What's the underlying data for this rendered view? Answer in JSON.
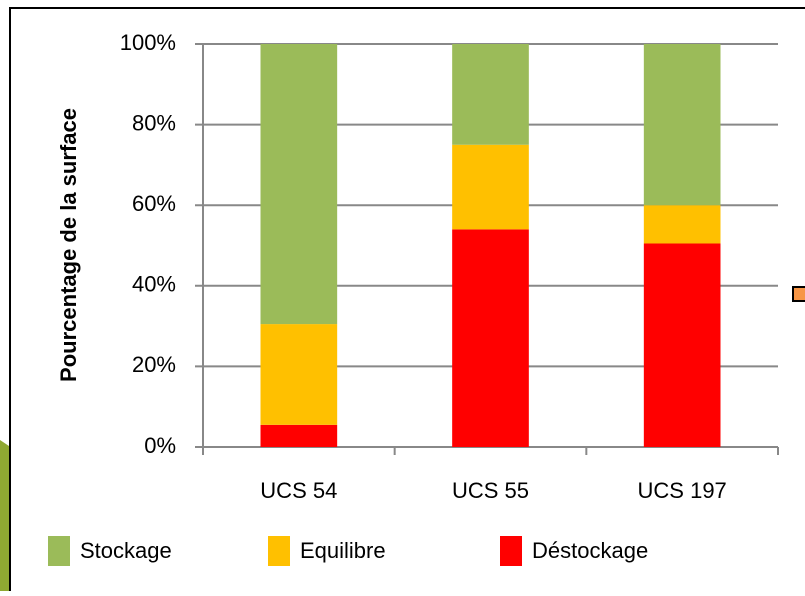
{
  "chart_data": {
    "type": "stacked_bar",
    "y_label": "Pourcentage de la surface",
    "categories": [
      "UCS 54",
      "UCS 55",
      "UCS 197"
    ],
    "series": [
      {
        "name": "Stockage",
        "color": "#9bbb59",
        "values": [
          69.5,
          25,
          40
        ]
      },
      {
        "name": "Equilibre",
        "color": "#ffc000",
        "values": [
          25,
          21,
          9.5
        ]
      },
      {
        "name": "Déstockage",
        "color": "#ff0000",
        "values": [
          5.5,
          54,
          50.5
        ]
      }
    ],
    "ylim": [
      0,
      100
    ],
    "yticks": [
      {
        "value": 0,
        "label": "0%"
      },
      {
        "value": 20,
        "label": "20%"
      },
      {
        "value": 40,
        "label": "40%"
      },
      {
        "value": 60,
        "label": "60%"
      },
      {
        "value": 80,
        "label": "80%"
      },
      {
        "value": 100,
        "label": "100%"
      }
    ],
    "grid": true
  }
}
